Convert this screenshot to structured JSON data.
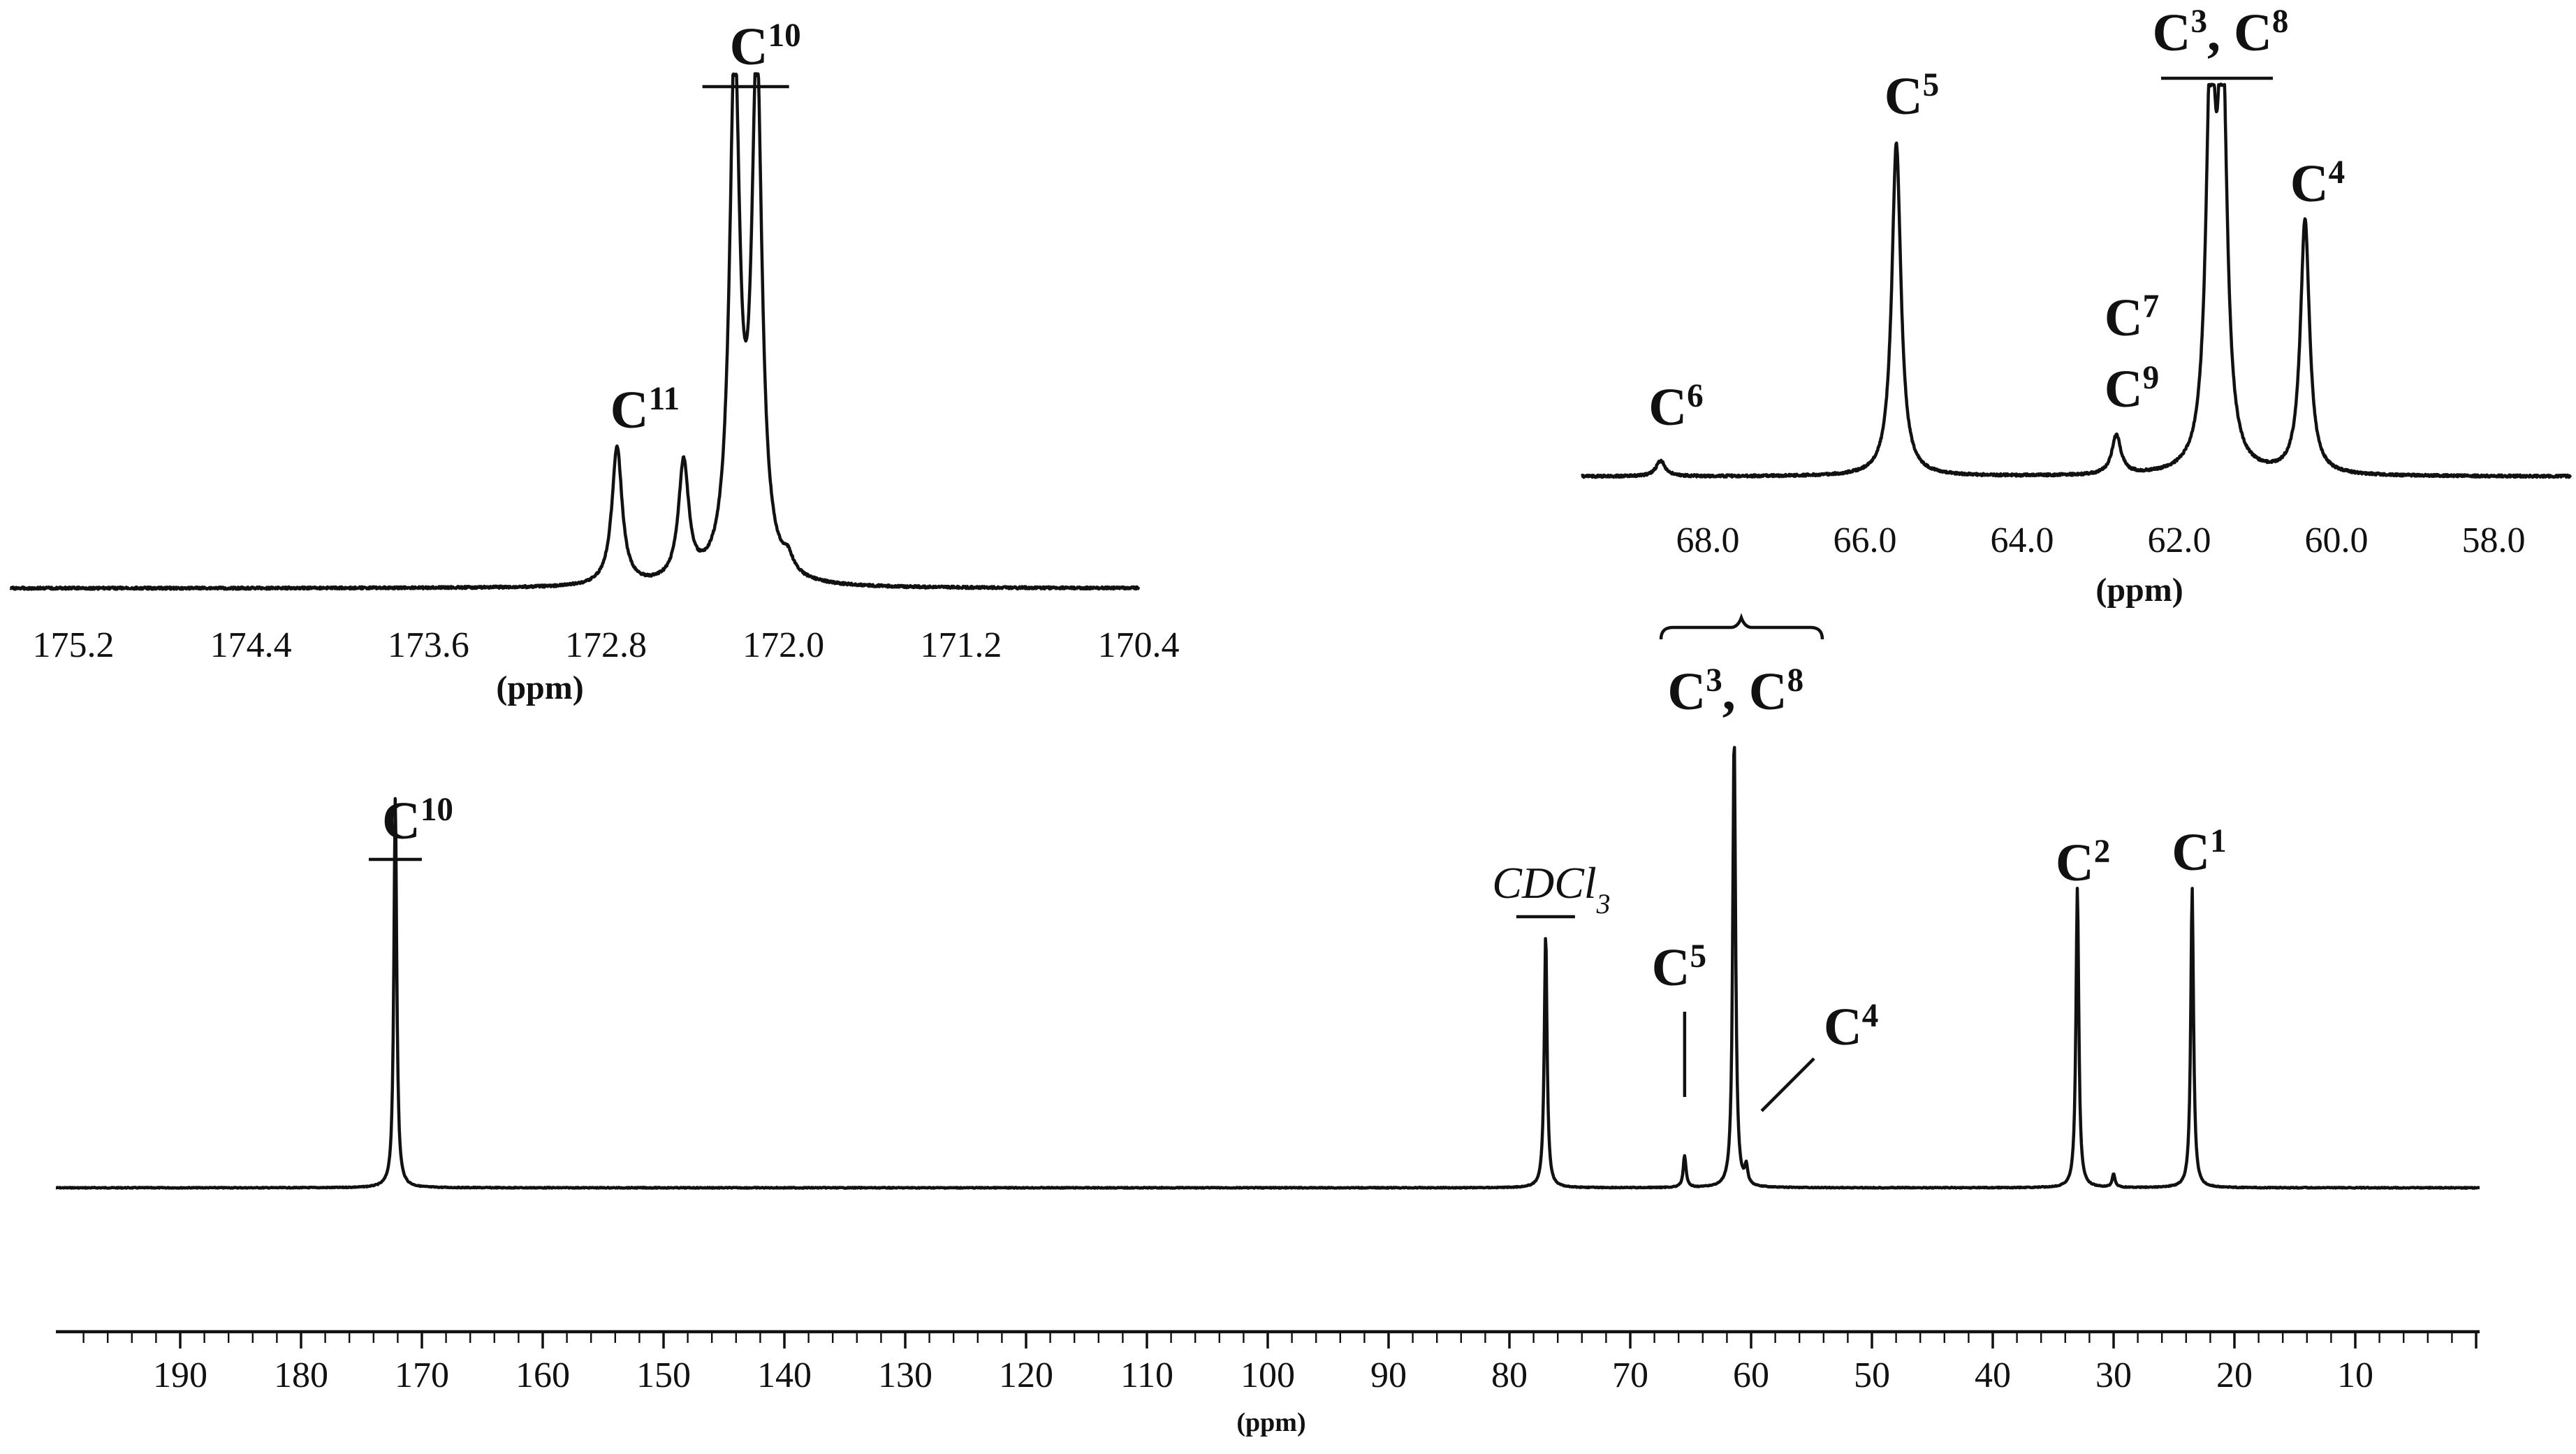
{
  "chart_data": [
    {
      "id": "main",
      "type": "line",
      "xlabel": "(ppm)",
      "ylabel": "",
      "xlim": [
        200,
        0
      ],
      "x_reversed": true,
      "grid": false,
      "xticks": [
        190,
        180,
        170,
        160,
        150,
        140,
        130,
        120,
        110,
        100,
        90,
        80,
        70,
        60,
        50,
        40,
        30,
        20,
        10
      ],
      "peaks": [
        {
          "ppm": 172.2,
          "height": 0.86,
          "label": "C",
          "sup": "10",
          "sub": "",
          "italic": false,
          "bar": true
        },
        {
          "ppm": 77.0,
          "height": 0.56,
          "label": "CDCl",
          "sup": "",
          "sub": "3",
          "italic": true,
          "bar": true
        },
        {
          "ppm": 65.5,
          "height": 0.07,
          "label": "C",
          "sup": "5",
          "sub": "",
          "italic": false,
          "bar": false
        },
        {
          "ppm": 61.4,
          "height": 1.0,
          "label": "C",
          "sup": "3",
          "label2": "C",
          "sup2": "8",
          "sub": "",
          "italic": false,
          "bar": false
        },
        {
          "ppm": 60.4,
          "height": 0.04,
          "label": "C",
          "sup": "4",
          "sub": "",
          "italic": false,
          "bar": false
        },
        {
          "ppm": 33.0,
          "height": 0.66,
          "label": "C",
          "sup": "2",
          "sub": "",
          "italic": false,
          "bar": false
        },
        {
          "ppm": 30.0,
          "height": 0.03,
          "label": "",
          "sup": "",
          "sub": "",
          "italic": false,
          "bar": false
        },
        {
          "ppm": 23.5,
          "height": 0.66,
          "label": "C",
          "sup": "1",
          "sub": "",
          "italic": false,
          "bar": false
        }
      ]
    },
    {
      "id": "inset-carbonyl",
      "type": "line",
      "xlabel": "(ppm)",
      "ylabel": "",
      "xlim": [
        175.6,
        170.2
      ],
      "x_reversed": true,
      "grid": false,
      "xticks": [
        "175.2",
        "174.4",
        "173.6",
        "172.8",
        "172.0",
        "171.2",
        "170.4"
      ],
      "peaks": [
        {
          "ppm": 172.75,
          "height": 0.27,
          "label": "C",
          "sup": "11"
        },
        {
          "ppm": 172.45,
          "height": 0.23,
          "label": ""
        },
        {
          "ppm": 172.22,
          "height": 1.0,
          "label": "C",
          "sup": "10"
        },
        {
          "ppm": 172.12,
          "height": 1.0,
          "label": ""
        },
        {
          "ppm": 171.98,
          "height": 0.03,
          "label": ""
        }
      ]
    },
    {
      "id": "inset-aliphatic",
      "type": "line",
      "xlabel": "(ppm)",
      "ylabel": "",
      "xlim": [
        70.0,
        57.0
      ],
      "x_reversed": true,
      "grid": false,
      "xticks": [
        "68.0",
        "66.0",
        "64.0",
        "62.0",
        "60.0",
        "58.0"
      ],
      "peaks": [
        {
          "ppm": 68.6,
          "height": 0.04,
          "label": "C",
          "sup": "6"
        },
        {
          "ppm": 65.6,
          "height": 0.85,
          "label": "C",
          "sup": "5"
        },
        {
          "ppm": 62.8,
          "height": 0.1,
          "label": "C",
          "sup": "7",
          "label2": "C",
          "sup2": "9"
        },
        {
          "ppm": 61.6,
          "height": 1.0,
          "label": "C",
          "sup": "3",
          "label_b": "C",
          "sup_b": "8"
        },
        {
          "ppm": 61.45,
          "height": 1.0,
          "label": ""
        },
        {
          "ppm": 60.4,
          "height": 0.65,
          "label": "C",
          "sup": "4"
        }
      ]
    }
  ]
}
